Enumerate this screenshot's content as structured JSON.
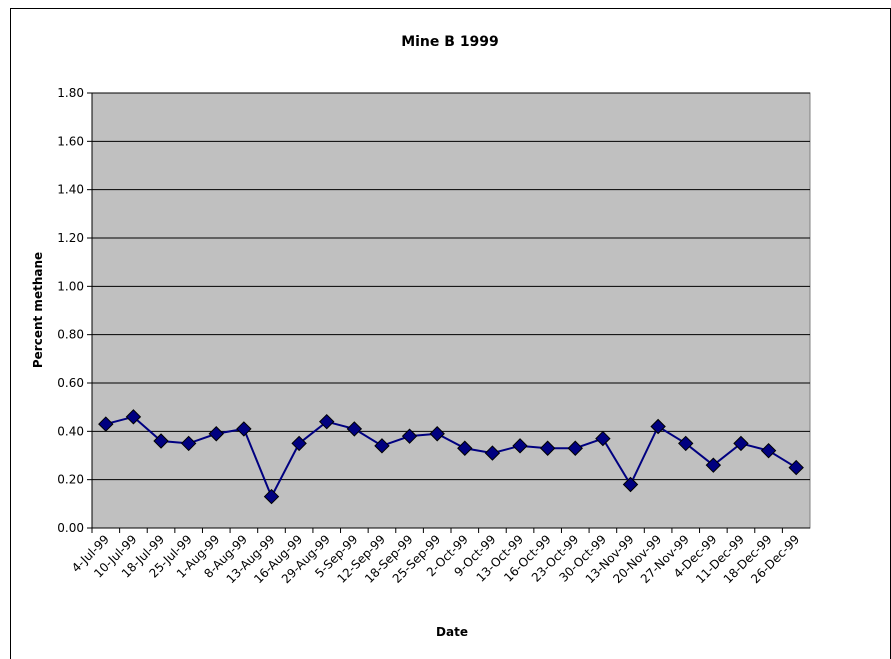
{
  "chart_data": {
    "type": "line",
    "title": "Mine B 1999",
    "x_label": "Date",
    "y_label": "Percent methane",
    "categories": [
      "4-Jul-99",
      "10-Jul-99",
      "18-Jul-99",
      "25-Jul-99",
      "1-Aug-99",
      "8-Aug-99",
      "13-Aug-99",
      "16-Aug-99",
      "29-Aug-99",
      "5-Sep-99",
      "12-Sep-99",
      "18-Sep-99",
      "25-Sep-99",
      "2-Oct-99",
      "9-Oct-99",
      "13-Oct-99",
      "16-Oct-99",
      "23-Oct-99",
      "30-Oct-99",
      "13-Nov-99",
      "20-Nov-99",
      "27-Nov-99",
      "4-Dec-99",
      "11-Dec-99",
      "18-Dec-99",
      "26-Dec-99"
    ],
    "values": [
      0.43,
      0.46,
      0.36,
      0.35,
      0.39,
      0.41,
      0.13,
      0.35,
      0.44,
      0.41,
      0.34,
      0.38,
      0.39,
      0.33,
      0.31,
      0.34,
      0.33,
      0.33,
      0.37,
      0.18,
      0.42,
      0.35,
      0.26,
      0.35,
      0.32,
      0.25
    ],
    "color": "#000080",
    "ylim": [
      0,
      1.8
    ],
    "yticks": [
      {
        "value": 0,
        "label": "0.00"
      },
      {
        "value": 0.2,
        "label": "0.20"
      },
      {
        "value": 0.4,
        "label": "0.40"
      },
      {
        "value": 0.6,
        "label": "0.60"
      },
      {
        "value": 0.8,
        "label": "0.80"
      },
      {
        "value": 1.0,
        "label": "1.00"
      },
      {
        "value": 1.2,
        "label": "1.20"
      },
      {
        "value": 1.4,
        "label": "1.40"
      },
      {
        "value": 1.6,
        "label": "1.60"
      },
      {
        "value": 1.8,
        "label": "1.80"
      }
    ],
    "grid": true
  }
}
